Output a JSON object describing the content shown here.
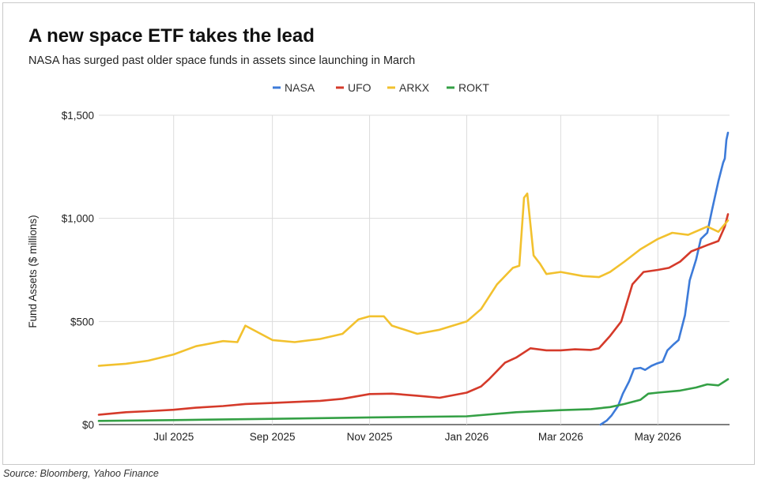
{
  "chart_data": {
    "type": "line",
    "title": "A new space ETF takes the lead",
    "subtitle": "NASA has surged past older space funds in assets since launching in March",
    "ylabel": "Fund Assets ($ millions)",
    "xlabel": "",
    "source": "Source: Bloomberg, Yahoo Finance",
    "ylim": [
      0,
      1500
    ],
    "yticks": [
      0,
      500,
      1000,
      1500
    ],
    "ytick_labels": [
      "$0",
      "$500",
      "$1,000",
      "$1,500"
    ],
    "xlim": [
      "2025-05-15",
      "2026-06-15"
    ],
    "xticks": [
      "2025-07-01",
      "2025-09-01",
      "2025-11-01",
      "2026-01-01",
      "2026-03-01",
      "2026-05-01"
    ],
    "xtick_labels": [
      "Jul 2025",
      "Sep 2025",
      "Nov 2025",
      "Jan 2026",
      "Mar 2026",
      "May 2026"
    ],
    "grid": true,
    "legend": "top-center",
    "series": [
      {
        "name": "NASA",
        "color": "#3d7bd9",
        "x": [
          "2026-03-26",
          "2026-03-30",
          "2026-04-02",
          "2026-04-06",
          "2026-04-09",
          "2026-04-13",
          "2026-04-16",
          "2026-04-20",
          "2026-04-23",
          "2026-04-27",
          "2026-04-30",
          "2026-05-04",
          "2026-05-07",
          "2026-05-11",
          "2026-05-14",
          "2026-05-18",
          "2026-05-21",
          "2026-05-25",
          "2026-05-28",
          "2026-06-01",
          "2026-06-04",
          "2026-06-08",
          "2026-06-11",
          "2026-06-12",
          "2026-06-13",
          "2026-06-14"
        ],
        "values": [
          0,
          20,
          45,
          90,
          150,
          210,
          270,
          275,
          265,
          285,
          295,
          305,
          360,
          390,
          410,
          530,
          700,
          800,
          900,
          930,
          1040,
          1180,
          1270,
          1290,
          1380,
          1415
        ]
      },
      {
        "name": "UFO",
        "color": "#d53a2a",
        "x": [
          "2025-05-15",
          "2025-06-01",
          "2025-06-15",
          "2025-07-01",
          "2025-07-15",
          "2025-08-01",
          "2025-08-15",
          "2025-09-01",
          "2025-09-15",
          "2025-10-01",
          "2025-10-15",
          "2025-11-01",
          "2025-11-15",
          "2025-12-01",
          "2025-12-15",
          "2026-01-01",
          "2026-01-10",
          "2026-01-15",
          "2026-01-25",
          "2026-02-01",
          "2026-02-10",
          "2026-02-20",
          "2026-03-01",
          "2026-03-10",
          "2026-03-20",
          "2026-03-25",
          "2026-04-01",
          "2026-04-08",
          "2026-04-15",
          "2026-04-22",
          "2026-05-01",
          "2026-05-08",
          "2026-05-15",
          "2026-05-22",
          "2026-06-01",
          "2026-06-08",
          "2026-06-12",
          "2026-06-14"
        ],
        "values": [
          48,
          60,
          65,
          72,
          82,
          90,
          100,
          105,
          110,
          115,
          125,
          148,
          150,
          140,
          130,
          155,
          185,
          220,
          300,
          325,
          370,
          360,
          360,
          365,
          362,
          370,
          430,
          500,
          680,
          740,
          750,
          760,
          790,
          840,
          870,
          890,
          960,
          1020
        ]
      },
      {
        "name": "ARKX",
        "color": "#f2c12e",
        "x": [
          "2025-05-15",
          "2025-06-01",
          "2025-06-15",
          "2025-07-01",
          "2025-07-15",
          "2025-08-01",
          "2025-08-10",
          "2025-08-15",
          "2025-09-01",
          "2025-09-15",
          "2025-10-01",
          "2025-10-15",
          "2025-10-25",
          "2025-11-01",
          "2025-11-10",
          "2025-11-15",
          "2025-12-01",
          "2025-12-15",
          "2026-01-01",
          "2026-01-10",
          "2026-01-20",
          "2026-01-30",
          "2026-02-03",
          "2026-02-06",
          "2026-02-08",
          "2026-02-12",
          "2026-02-16",
          "2026-02-20",
          "2026-03-01",
          "2026-03-15",
          "2026-03-25",
          "2026-04-01",
          "2026-04-10",
          "2026-04-20",
          "2026-05-01",
          "2026-05-10",
          "2026-05-20",
          "2026-06-01",
          "2026-06-08",
          "2026-06-14"
        ],
        "values": [
          285,
          295,
          310,
          340,
          380,
          405,
          400,
          480,
          410,
          400,
          415,
          440,
          510,
          525,
          525,
          480,
          440,
          460,
          500,
          560,
          680,
          760,
          770,
          1100,
          1120,
          820,
          780,
          730,
          740,
          720,
          715,
          740,
          790,
          850,
          900,
          930,
          920,
          960,
          935,
          990
        ]
      },
      {
        "name": "ROKT",
        "color": "#34a045",
        "x": [
          "2025-05-15",
          "2025-07-01",
          "2025-09-01",
          "2025-11-01",
          "2026-01-01",
          "2026-02-01",
          "2026-03-01",
          "2026-03-20",
          "2026-04-01",
          "2026-04-10",
          "2026-04-20",
          "2026-04-25",
          "2026-05-01",
          "2026-05-15",
          "2026-05-25",
          "2026-06-01",
          "2026-06-08",
          "2026-06-12",
          "2026-06-14"
        ],
        "values": [
          18,
          22,
          28,
          35,
          40,
          60,
          70,
          75,
          85,
          100,
          120,
          150,
          155,
          165,
          180,
          195,
          190,
          210,
          220
        ]
      }
    ]
  }
}
